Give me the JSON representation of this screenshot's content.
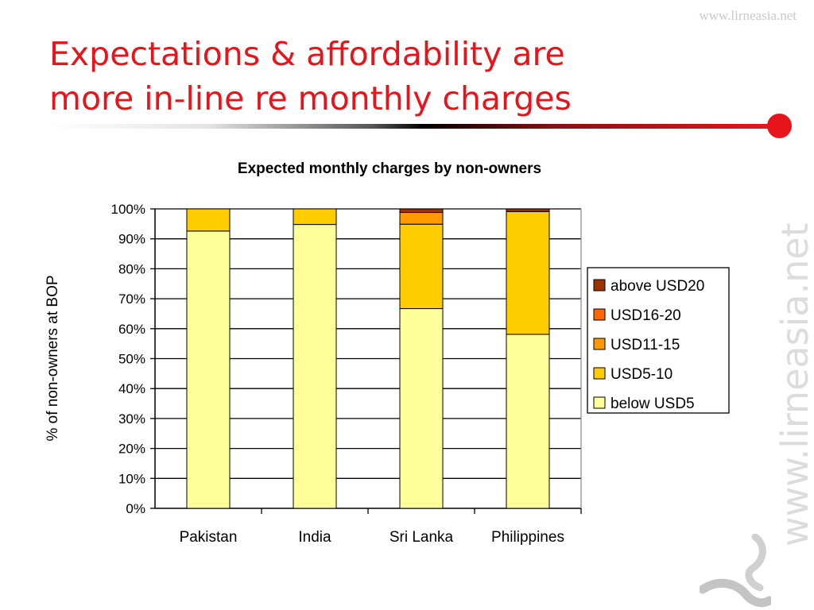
{
  "site_url": "www.lirneasia.net",
  "slide_title_line1": "Expectations & affordability are",
  "slide_title_line2": "more in-line re monthly charges",
  "watermark_text": "www.lirneasia.net",
  "colors": {
    "title_red": "#e8141b",
    "below_USD5": "#ffff99",
    "USD5_10": "#ffcc00",
    "USD11_15": "#ff9900",
    "USD16_20": "#ff6600",
    "above_USD20": "#993300"
  },
  "chart_data": {
    "type": "bar",
    "stacked": true,
    "title": "Expected monthly charges by non-owners",
    "xlabel": "",
    "ylabel": "% of non-owners at BOP",
    "ylim": [
      0,
      100
    ],
    "yticks": [
      "0%",
      "10%",
      "20%",
      "30%",
      "40%",
      "50%",
      "60%",
      "70%",
      "80%",
      "90%",
      "100%"
    ],
    "categories": [
      "Pakistan",
      "India",
      "Sri Lanka",
      "Philippines"
    ],
    "series": [
      {
        "name": "below USD5",
        "color": "#ffff99",
        "values": [
          92.6,
          94.8,
          66.7,
          58.1
        ]
      },
      {
        "name": "USD5-10",
        "color": "#ffcc00",
        "values": [
          7.4,
          5.2,
          28.2,
          41.0
        ]
      },
      {
        "name": "USD11-15",
        "color": "#ff9900",
        "values": [
          0,
          0,
          3.9,
          0
        ]
      },
      {
        "name": "USD16-20",
        "color": "#ff6600",
        "values": [
          0,
          0,
          0,
          0
        ]
      },
      {
        "name": "above USD20",
        "color": "#993300",
        "values": [
          0,
          0,
          1.2,
          0.9
        ]
      }
    ],
    "legend": {
      "position": "right",
      "order": [
        "above USD20",
        "USD16-20",
        "USD11-15",
        "USD5-10",
        "below USD5"
      ]
    },
    "grid": true
  }
}
